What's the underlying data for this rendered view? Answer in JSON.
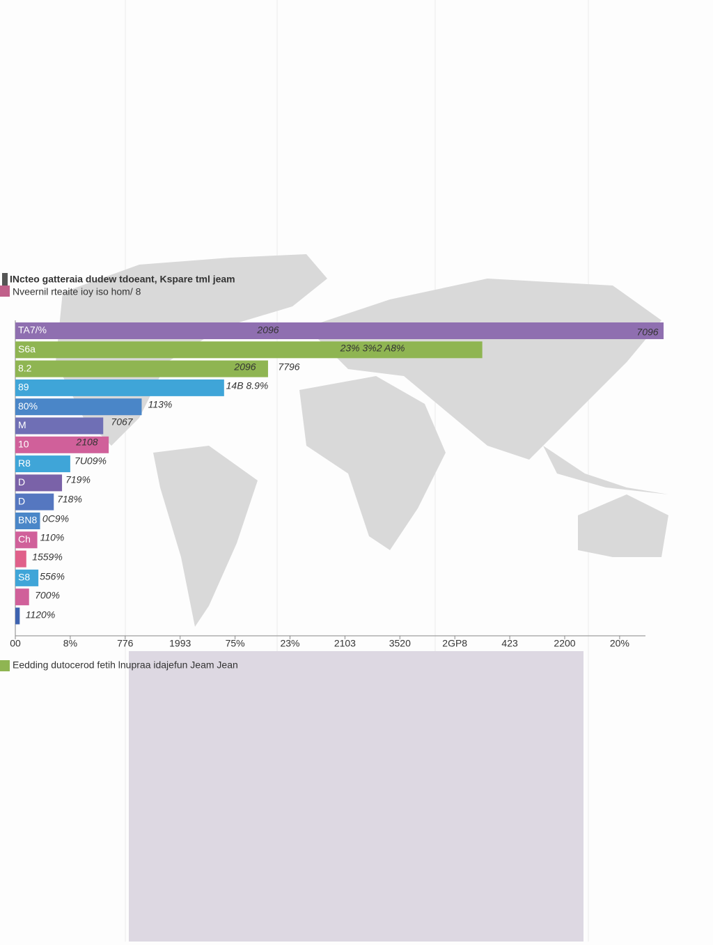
{
  "chart_data": {
    "type": "barh",
    "title": "INcteo gatteraia dudew tdoeant, Kspare tml jeam",
    "subtitle": "Nveernil rteaite ioy iso hom/ 8",
    "footer_legend": "Eedding dutocerod fetih lnupraa idajefun Jeam Jean",
    "categories": [
      "TA7/%",
      "S6a",
      "8.2",
      "89",
      "80%",
      "M",
      "10",
      "R8",
      "D",
      "D",
      "BN8",
      "Ch",
      null,
      "S8",
      null,
      null
    ],
    "values": [
      11.8,
      8.5,
      4.6,
      3.8,
      2.3,
      1.6,
      1.7,
      1.0,
      0.85,
      0.7,
      0.45,
      0.4,
      0.2,
      0.42,
      0.25,
      0.08
    ],
    "colors": [
      "#8f6fb0",
      "#8fb552",
      "#8fb552",
      "#3fa5d8",
      "#4a86c8",
      "#6f6fb5",
      "#d0609a",
      "#3fa5d8",
      "#7a62a8",
      "#5577c0",
      "#4a86c8",
      "#d0609a",
      "#e0608a",
      "#3fa5d8",
      "#d0609a",
      "#3e63b0"
    ],
    "annotations": [
      "2096",
      "7096",
      "23% 3%2 A8%",
      "2096",
      "7796",
      "14B 8.9%",
      "113%",
      "7067",
      "2108",
      "7U09%",
      "719%",
      "718%",
      "0C9%",
      "110%",
      "1559%",
      "556%",
      "700%",
      "1120%"
    ],
    "xlim": [
      0,
      11.47
    ],
    "xticks": [
      {
        "value": 0,
        "label": "00"
      },
      {
        "value": 1,
        "label": "8%"
      },
      {
        "value": 2,
        "label": "776"
      },
      {
        "value": 3,
        "label": "1993"
      },
      {
        "value": 4,
        "label": "75%"
      },
      {
        "value": 5,
        "label": "23%"
      },
      {
        "value": 6,
        "label": "2103"
      },
      {
        "value": 7,
        "label": "3520"
      },
      {
        "value": 8,
        "label": "2GP8"
      },
      {
        "value": 9,
        "label": "423"
      },
      {
        "value": 10,
        "label": "2200"
      },
      {
        "value": 11,
        "label": "20%"
      }
    ]
  }
}
